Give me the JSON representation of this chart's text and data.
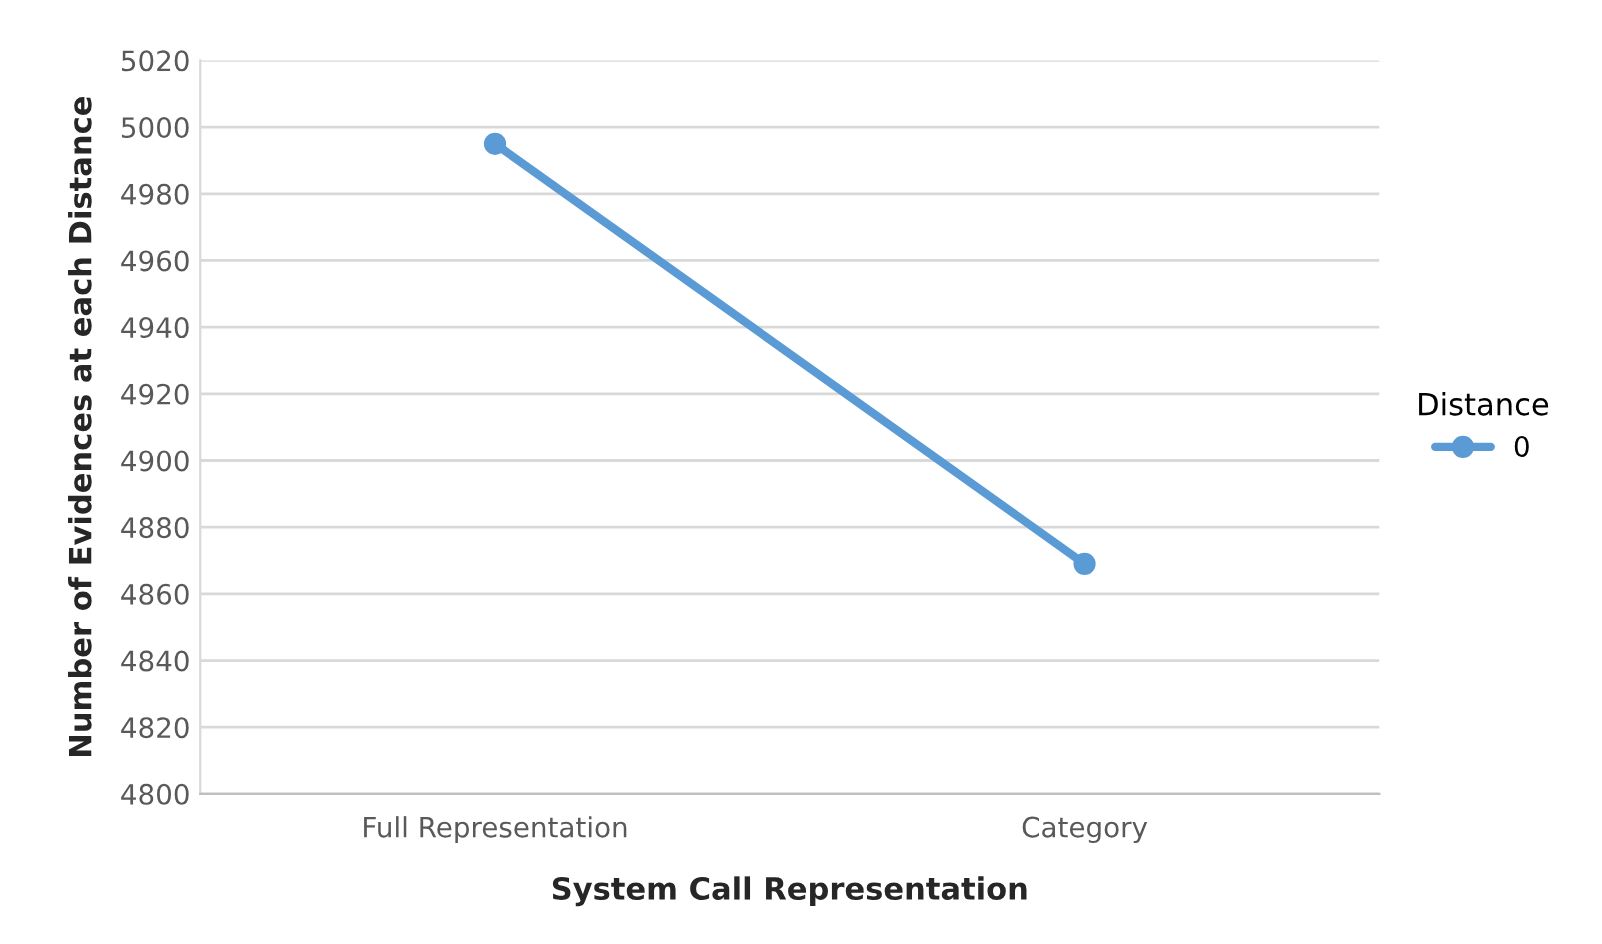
{
  "chart_data": {
    "type": "line",
    "xlabel": "System Call Representation",
    "ylabel": "Number of Evidences at each Distance",
    "categories": [
      "Full Representation",
      "Category"
    ],
    "series": [
      {
        "name": "0",
        "color": "#5b9bd5",
        "values": [
          4995,
          4869
        ]
      }
    ],
    "ylim": [
      4800,
      5020
    ],
    "yticks": [
      4800,
      4820,
      4840,
      4860,
      4880,
      4900,
      4920,
      4940,
      4960,
      4980,
      5000,
      5020
    ],
    "grid": "y",
    "legend": "right",
    "legend_title": "Distance",
    "marker": "circle",
    "line_style": "solid"
  }
}
